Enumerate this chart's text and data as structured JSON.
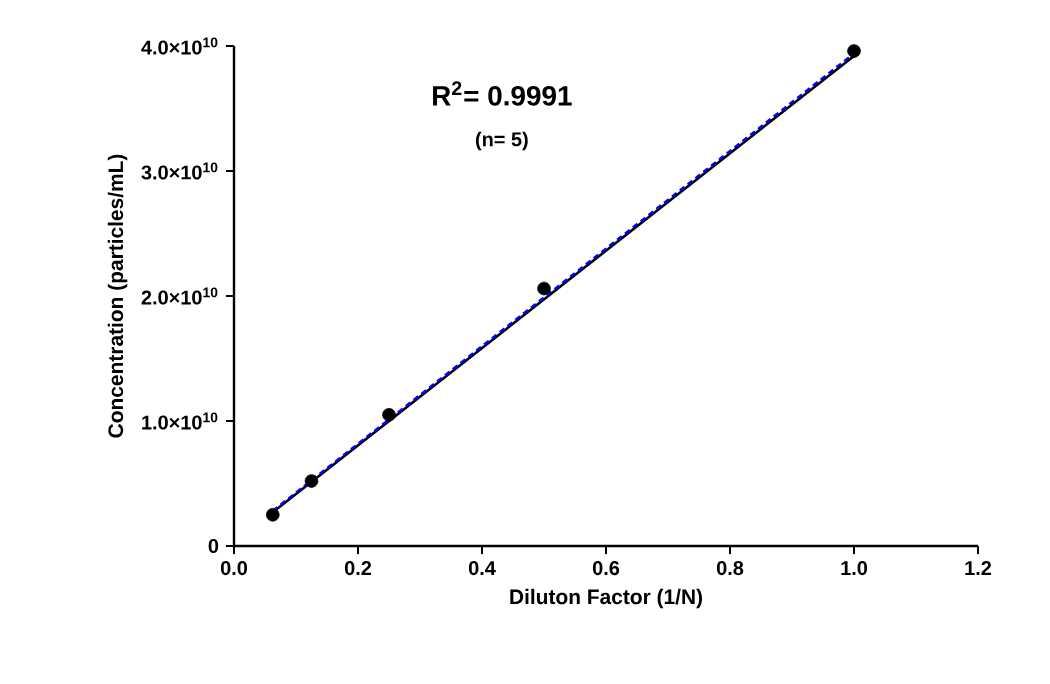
{
  "chart_data": {
    "type": "scatter",
    "xlabel": "Diluton Factor (1/N)",
    "ylabel": "Concentration (particles/mL)",
    "xlim": [
      0,
      1.2
    ],
    "ylim": [
      0,
      40000000000
    ],
    "xticks": [
      {
        "value": 0,
        "label": "0.0"
      },
      {
        "value": 0.2,
        "label": "0.2"
      },
      {
        "value": 0.4,
        "label": "0.4"
      },
      {
        "value": 0.6,
        "label": "0.6"
      },
      {
        "value": 0.8,
        "label": "0.8"
      },
      {
        "value": 1,
        "label": "1.0"
      },
      {
        "value": 1.2,
        "label": "1.2"
      }
    ],
    "yticks": [
      0,
      {
        "value": 10000000000,
        "label": "1.0×10$^{10}$"
      },
      {
        "value": 20000000000,
        "label": "2.0×10$^{10}$"
      },
      {
        "value": 30000000000,
        "label": "3.0×10$^{10}$"
      },
      {
        "value": 40000000000,
        "label": "4.0×10$^{10}$"
      }
    ],
    "grid": false,
    "annotations": [
      "R$^{2}$= 0.9991",
      "(n= 5)"
    ],
    "series": [
      {
        "color": "#000000",
        "marker": "circle",
        "x": [
          0.0625,
          0.125,
          0.25,
          0.5,
          1.0
        ],
        "values": [
          2500000000,
          5200000000,
          10500000000,
          20600000000,
          39600000000
        ]
      },
      {
        "type": "line",
        "color": "#000000",
        "line_style": "solid",
        "marker": "none",
        "x": [
          0.0625,
          1.0
        ],
        "values": [
          2700000000,
          39200000000
        ]
      },
      {
        "type": "line",
        "color": "#0000ff",
        "line_style": "dashed",
        "marker": "none",
        "x": [
          0.0625,
          1.0
        ],
        "values": [
          2800000000,
          39400000000
        ]
      }
    ]
  }
}
